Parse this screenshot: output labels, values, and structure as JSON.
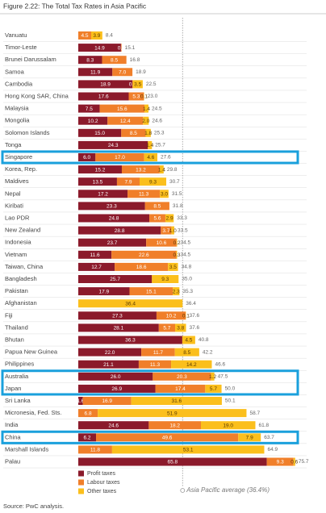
{
  "chart_data": {
    "type": "bar",
    "orientation": "horizontal",
    "stacked": true,
    "title": "Figure 2.22: The Total Tax Rates in Asia Pacific",
    "categories": [
      "Vanuatu",
      "Timor-Leste",
      "Brunei Darussalam",
      "Samoa",
      "Cambodia",
      "Hong Kong SAR, China",
      "Malaysia",
      "Mongolia",
      "Solomon Islands",
      "Tonga",
      "Singapore",
      "Korea, Rep.",
      "Maldives",
      "Nepal",
      "Kiribati",
      "Lao PDR",
      "New Zealand",
      "Indonesia",
      "Vietnam",
      "Taiwan, China",
      "Bangladesh",
      "Pakistan",
      "Afghanistan",
      "Fiji",
      "Thailand",
      "Bhutan",
      "Papua New Guinea",
      "Philippines",
      "Australia",
      "Japan",
      "Sri Lanka",
      "Micronesia, Fed. Sts.",
      "India",
      "China",
      "Marshall Islands",
      "Palau"
    ],
    "series": [
      {
        "name": "Profit taxes",
        "color": "#8b1a2b",
        "values": [
          null,
          14.9,
          8.3,
          11.9,
          18.9,
          17.6,
          7.5,
          10.2,
          15.0,
          24.3,
          6.0,
          15.2,
          13.5,
          17.2,
          23.3,
          24.8,
          28.8,
          23.7,
          11.6,
          12.7,
          25.7,
          17.9,
          null,
          27.3,
          28.1,
          36.3,
          22.0,
          21.1,
          26.0,
          26.9,
          1.6,
          null,
          24.6,
          6.2,
          null,
          65.8
        ],
        "value_labels": [
          null,
          "14.9",
          "8.3",
          "11.9",
          "18.9",
          "17.6",
          "7.5",
          "10.2",
          "15.0",
          "24.3",
          "6.0",
          "15.2",
          "13.5",
          "17.2",
          "23.3",
          "24.8",
          "28.8",
          "23.7",
          "11.6",
          "12.7",
          "25.7",
          "17.9",
          null,
          "27.3",
          "28.1",
          "36.3",
          "22.0",
          "21.1",
          "26.0",
          "26.9",
          "1.6",
          null,
          "24.6",
          "6.2",
          null,
          "65.8"
        ]
      },
      {
        "name": "Labour taxes",
        "color": "#f07f2a",
        "values": [
          4.5,
          0.2,
          8.5,
          7.0,
          0.1,
          5.3,
          15.6,
          12.4,
          8.5,
          null,
          17.0,
          13.2,
          7.9,
          11.3,
          8.5,
          5.6,
          3.7,
          10.6,
          22.6,
          18.6,
          null,
          15.1,
          null,
          10.2,
          5.7,
          null,
          11.7,
          11.3,
          20.3,
          17.4,
          16.9,
          6.8,
          18.2,
          49.6,
          11.8,
          9.3
        ],
        "value_labels": [
          "4.5",
          "0.2",
          "8.5",
          "7.0",
          "0.1",
          "5.3",
          "15.6",
          "12.4",
          "8.5",
          null,
          "17.0",
          "13.2",
          "7.9",
          "11.3",
          "8.5",
          "5.6",
          "3.7",
          "10.6",
          "22.6",
          "18.6",
          null,
          "15.1",
          null,
          "10.2",
          "5.7",
          null,
          "11.7",
          "11.3",
          "20.3",
          "17.4",
          "16.9",
          "6.8",
          "18.2",
          "49.6",
          "11.8",
          "9.3"
        ]
      },
      {
        "name": "Other taxes",
        "color": "#fbbf1c",
        "values": [
          3.9,
          null,
          null,
          null,
          3.5,
          0.1,
          1.4,
          2.0,
          1.8,
          1.4,
          4.6,
          1.4,
          9.3,
          3.0,
          null,
          2.9,
          1.0,
          0.2,
          0.3,
          3.5,
          9.3,
          2.3,
          36.4,
          0.1,
          3.8,
          4.5,
          8.5,
          14.2,
          1.2,
          5.7,
          31.6,
          51.9,
          19.0,
          7.9,
          53.1,
          0.6
        ],
        "value_labels": [
          "3.9",
          null,
          null,
          null,
          "3.5",
          "0.1",
          "1.4",
          "2.0",
          "1.8",
          "1.4",
          "4.6",
          "1.4",
          "9.3",
          "3.0",
          null,
          "2.9",
          "1.0",
          "0.2",
          "0.3",
          "3.5",
          "9.3",
          "2.3",
          "36.4",
          "0.1",
          "3.8",
          "4.5",
          "8.5",
          "14.2",
          "1.2",
          "5.7",
          "31.6",
          "51.9",
          "19.0",
          "7.9",
          "53.1",
          "0.6"
        ]
      }
    ],
    "totals": [
      8.4,
      15.1,
      16.8,
      18.9,
      22.5,
      23.0,
      24.5,
      24.6,
      25.3,
      25.7,
      27.6,
      29.8,
      30.7,
      31.5,
      31.8,
      33.3,
      33.5,
      34.5,
      34.5,
      34.8,
      35.0,
      35.3,
      36.4,
      37.6,
      37.6,
      40.8,
      42.2,
      46.6,
      47.5,
      50.0,
      50.1,
      58.7,
      61.8,
      63.7,
      64.9,
      75.7
    ],
    "total_labels": [
      "8.4",
      "15.1",
      "16.8",
      "18.9",
      "22.5",
      "23.0",
      "24.5",
      "24.6",
      "25.3",
      "25.7",
      "27.6",
      "29.8",
      "30.7",
      "31.5",
      "31.8",
      "33.3",
      "33.5",
      "34.5",
      "34.5",
      "34.8",
      "35.0",
      "35.3",
      "36.4",
      "37.6",
      "37.6",
      "40.8",
      "42.2",
      "46.6",
      "47.5",
      "50.0",
      "50.1",
      "58.7",
      "61.8",
      "63.7",
      "64.9",
      "75.7"
    ],
    "xlim": [
      0,
      78
    ],
    "average": 36.4,
    "average_label": "Asia Pacific average (36.4%)",
    "highlight_color": "#1aa0dc",
    "highlight_rows": [
      [
        10,
        10
      ],
      [
        28,
        29
      ],
      [
        33,
        33
      ]
    ],
    "source": "Source: PwC analysis."
  }
}
